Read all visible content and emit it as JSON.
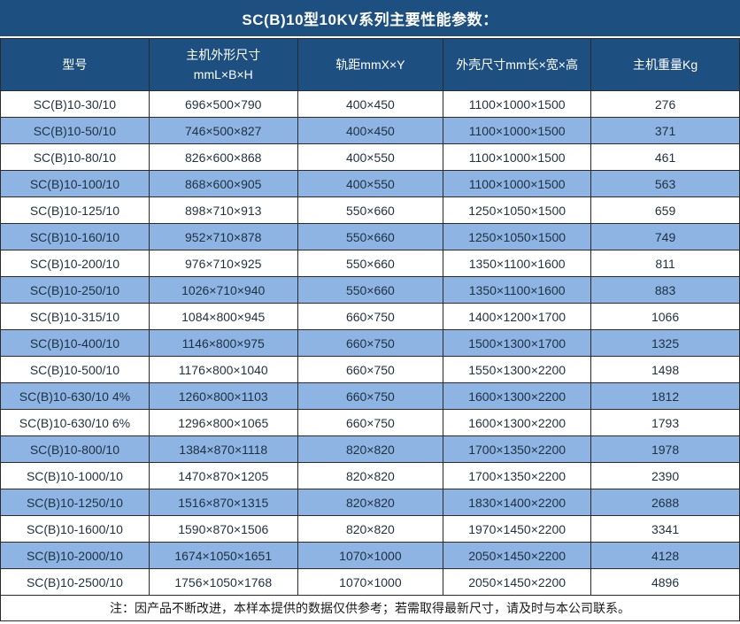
{
  "chart_data": {
    "type": "table",
    "title": "SC(B)10型10KV系列主要性能参数：",
    "columns": [
      "型号",
      "主机外形尺寸 mmL×B×H",
      "轨距mmX×Y",
      "外壳尺寸mm长×宽×高",
      "主机重量Kg"
    ],
    "rows": [
      [
        "SC(B)10-30/10",
        "696×500×790",
        "400×450",
        "1100×1000×1500",
        "276"
      ],
      [
        "SC(B)10-50/10",
        "746×500×827",
        "400×450",
        "1100×1000×1500",
        "371"
      ],
      [
        "SC(B)10-80/10",
        "826×600×868",
        "400×550",
        "1100×1000×1500",
        "461"
      ],
      [
        "SC(B)10-100/10",
        "868×600×905",
        "400×550",
        "1100×1000×1500",
        "563"
      ],
      [
        "SC(B)10-125/10",
        "898×710×913",
        "550×660",
        "1250×1050×1500",
        "659"
      ],
      [
        "SC(B)10-160/10",
        "952×710×878",
        "550×660",
        "1250×1050×1500",
        "749"
      ],
      [
        "SC(B)10-200/10",
        "976×710×925",
        "550×660",
        "1350×1100×1600",
        "811"
      ],
      [
        "SC(B)10-250/10",
        "1026×710×940",
        "550×660",
        "1350×1100×1600",
        "883"
      ],
      [
        "SC(B)10-315/10",
        "1084×800×945",
        "660×750",
        "1400×1200×1700",
        "1066"
      ],
      [
        "SC(B)10-400/10",
        "1146×800×975",
        "660×750",
        "1500×1300×1700",
        "1325"
      ],
      [
        "SC(B)10-500/10",
        "1176×800×1040",
        "660×750",
        "1550×1300×2200",
        "1498"
      ],
      [
        "SC(B)10-630/10 4%",
        "1260×800×1103",
        "660×750",
        "1600×1300×2200",
        "1812"
      ],
      [
        "SC(B)10-630/10 6%",
        "1296×800×1065",
        "660×750",
        "1600×1300×2200",
        "1793"
      ],
      [
        "SC(B)10-800/10",
        "1384×870×1118",
        "820×820",
        "1700×1350×2200",
        "1978"
      ],
      [
        "SC(B)10-1000/10",
        "1470×870×1205",
        "820×820",
        "1700×1350×2200",
        "2390"
      ],
      [
        "SC(B)10-1250/10",
        "1516×870×1315",
        "820×820",
        "1830×1400×2200",
        "2688"
      ],
      [
        "SC(B)10-1600/10",
        "1590×870×1506",
        "820×820",
        "1970×1450×2200",
        "3341"
      ],
      [
        "SC(B)10-2000/10",
        "1674×1050×1651",
        "1070×1000",
        "2050×1450×2200",
        "4128"
      ],
      [
        "SC(B)10-2500/10",
        "1756×1050×1768",
        "1070×1000",
        "2050×1450×2200",
        "4896"
      ]
    ],
    "note": "注：因产品不断改进，本样本提供的数据仅供参考；若需取得最新尺寸，请及时与本公司联系。"
  },
  "display_headers": [
    "型号",
    "主机外形尺寸\nmmL×B×H",
    "轨距mmX×Y",
    "外壳尺寸mm长×宽×高",
    "主机重量Kg"
  ],
  "colors": {
    "header_bg": "#1d5080",
    "header_text": "#ffffff",
    "row_bg": "#ffffff",
    "row_alt_bg": "#8db4e2",
    "border_color": "#2b2a28",
    "cell_text": "#1f3040",
    "note_text": "#1a1a1a"
  }
}
